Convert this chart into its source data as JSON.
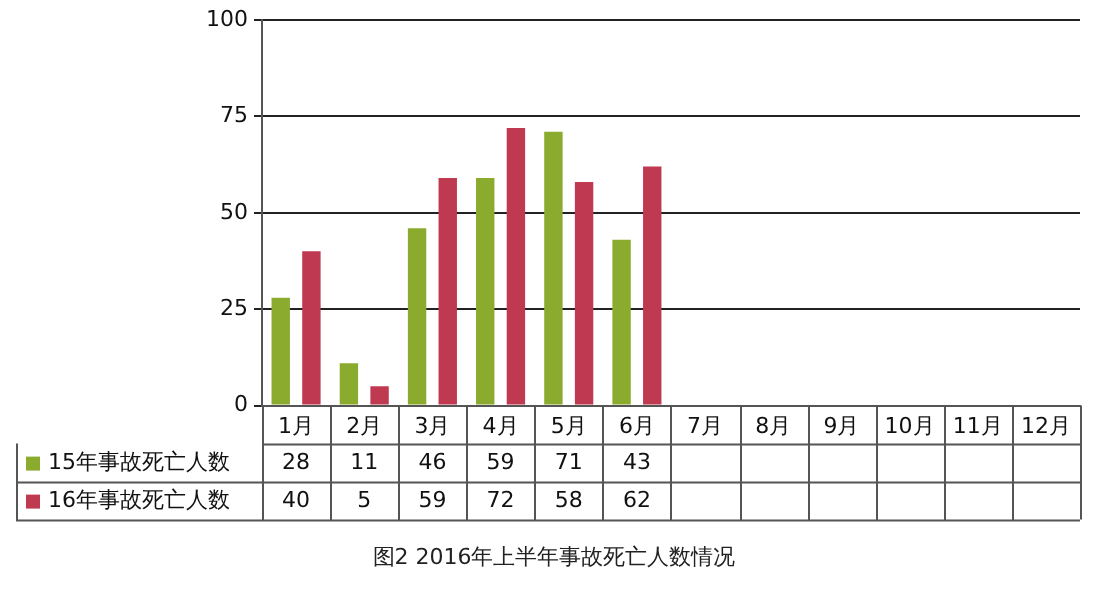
{
  "chart_data": {
    "type": "bar",
    "categories": [
      "1月",
      "2月",
      "3月",
      "4月",
      "5月",
      "6月",
      "7月",
      "8月",
      "9月",
      "10月",
      "11月",
      "12月"
    ],
    "series": [
      {
        "name": "15年事故死亡人数",
        "color": "#8aab2e",
        "values": [
          28,
          11,
          46,
          59,
          71,
          43,
          null,
          null,
          null,
          null,
          null,
          null
        ]
      },
      {
        "name": "16年事故死亡人数",
        "color": "#bf3a50",
        "values": [
          40,
          5,
          59,
          72,
          58,
          62,
          null,
          null,
          null,
          null,
          null,
          null
        ]
      }
    ],
    "ylim": [
      0,
      100
    ],
    "yticks": [
      0,
      25,
      50,
      75,
      100
    ],
    "grid": "y",
    "legend": "bottom left",
    "data_labels": true,
    "annotations": [
      "图2  2016年上半年事故死亡人数情况"
    ]
  }
}
